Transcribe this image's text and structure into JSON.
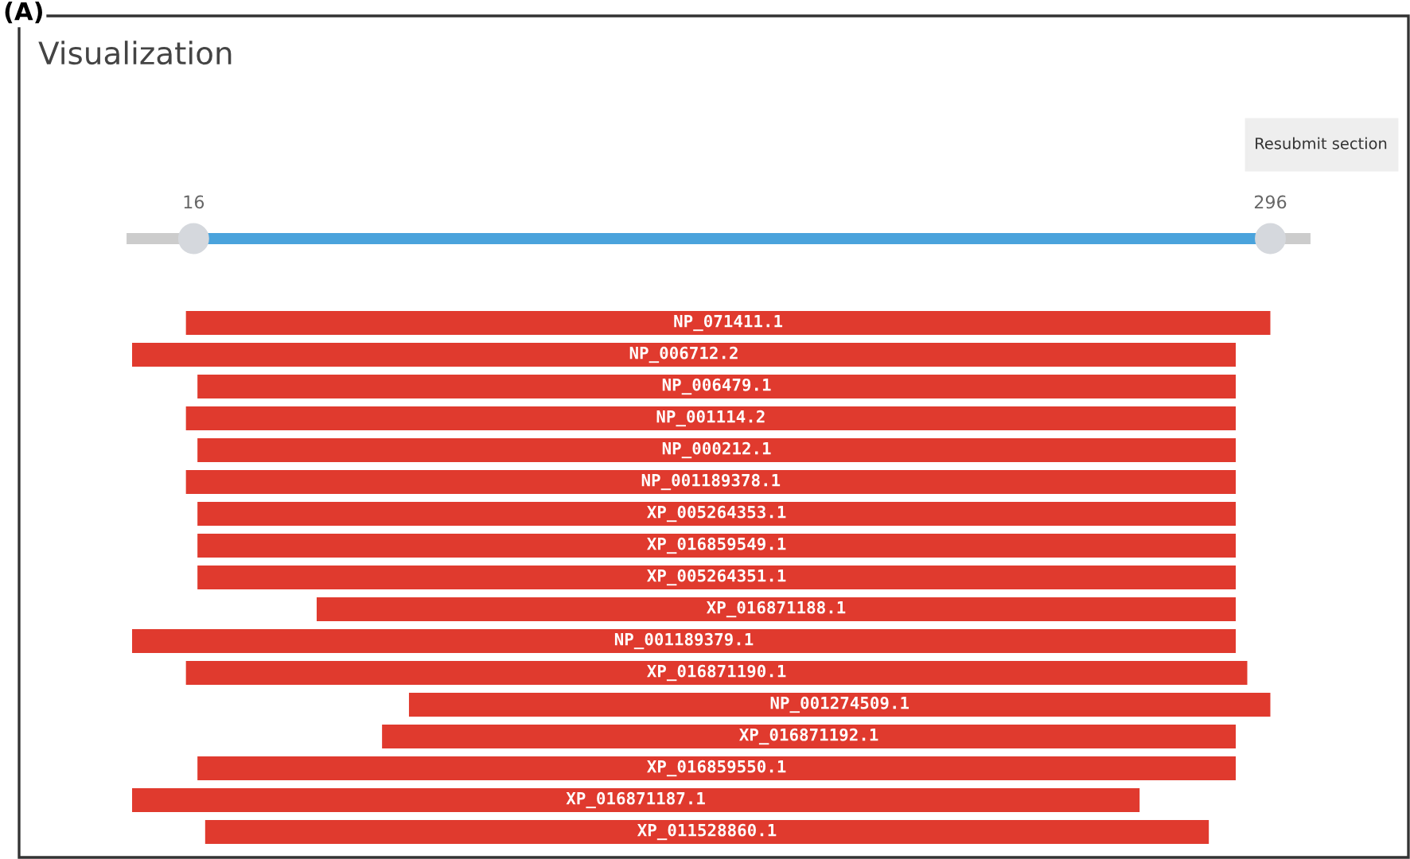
{
  "chart_data": {
    "type": "bar",
    "orientation": "horizontal",
    "title": "Visualization",
    "annotations": [
      "(A)",
      "Resubmit section"
    ],
    "categories": [
      "NP_071411.1",
      "NP_006712.2",
      "NP_006479.1",
      "NP_001114.2",
      "NP_000212.1",
      "NP_001189378.1",
      "XP_005264353.1",
      "XP_016859549.1",
      "XP_005264351.1",
      "XP_016871188.1",
      "NP_001189379.1",
      "XP_016871190.1",
      "NP_001274509.1",
      "XP_016871192.1",
      "XP_016859550.1",
      "XP_016871187.1",
      "XP_011528860.1"
    ],
    "base": [
      14,
      0,
      17,
      14,
      17,
      14,
      17,
      17,
      17,
      48,
      0,
      14,
      72,
      65,
      17,
      0,
      19
    ],
    "values": [
      282,
      287,
      270,
      273,
      270,
      273,
      270,
      270,
      270,
      239,
      287,
      276,
      224,
      222,
      270,
      262,
      261
    ],
    "color": "#e03a2e",
    "xlim": [
      0,
      305
    ],
    "xticks": [
      16,
      296
    ]
  }
}
